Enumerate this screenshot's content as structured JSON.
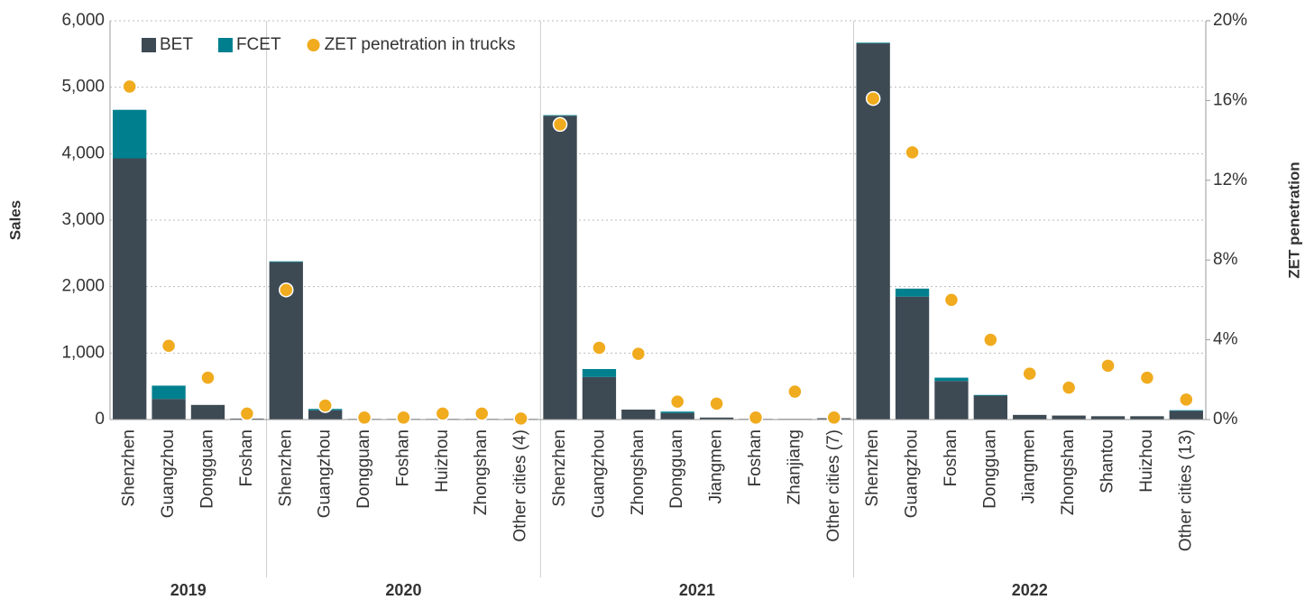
{
  "chart_data": {
    "type": "bar",
    "y_label": "Sales",
    "y2_label": "ZET penetration",
    "categories": [
      "Shenzhen",
      "Guangzhou",
      "Dongguan",
      "Foshan",
      "Shenzhen",
      "Guangzhou",
      "Dongguan",
      "Foshan",
      "Huizhou",
      "Zhongshan",
      "Other cities (4)",
      "Shenzhen",
      "Guangzhou",
      "Zhongshan",
      "Dongguan",
      "Jiangmen",
      "Foshan",
      "Zhanjiang",
      "Other cities (7)",
      "Shenzhen",
      "Guangzhou",
      "Foshan",
      "Dongguan",
      "Jiangmen",
      "Zhongshan",
      "Shantou",
      "Huizhou",
      "Other cities (13)"
    ],
    "category_groups": [
      "2019",
      "2019",
      "2019",
      "2019",
      "2020",
      "2020",
      "2020",
      "2020",
      "2020",
      "2020",
      "2020",
      "2021",
      "2021",
      "2021",
      "2021",
      "2021",
      "2021",
      "2021",
      "2021",
      "2022",
      "2022",
      "2022",
      "2022",
      "2022",
      "2022",
      "2022",
      "2022",
      "2022"
    ],
    "series": [
      {
        "name": "BET",
        "color": "#3d4a54",
        "stacked": true,
        "values": [
          3930,
          310,
          220,
          15,
          2370,
          140,
          10,
          10,
          10,
          10,
          10,
          4570,
          640,
          150,
          100,
          30,
          10,
          10,
          20,
          5660,
          1850,
          580,
          360,
          70,
          60,
          50,
          50,
          130
        ]
      },
      {
        "name": "FCET",
        "color": "#00808f",
        "stacked": true,
        "values": [
          730,
          200,
          0,
          0,
          10,
          20,
          0,
          0,
          0,
          0,
          0,
          10,
          120,
          0,
          20,
          0,
          0,
          0,
          0,
          10,
          120,
          50,
          10,
          0,
          0,
          0,
          0,
          10
        ]
      },
      {
        "name": "ZET penetration in trucks",
        "color": "#f0ab1e",
        "type": "scatter",
        "axis": "y2",
        "values": [
          16.7,
          3.7,
          2.1,
          0.3,
          6.5,
          0.7,
          0.1,
          0.1,
          0.3,
          0.3,
          0.05,
          14.8,
          3.6,
          3.3,
          0.9,
          0.8,
          0.1,
          1.4,
          0.1,
          16.1,
          13.4,
          6.0,
          4.0,
          2.3,
          1.6,
          2.7,
          2.1,
          1.0
        ]
      }
    ],
    "ylim": [
      0,
      6000
    ],
    "yticks": [
      0,
      {
        "value": 1000,
        "label": "1,000"
      },
      {
        "value": 2000,
        "label": "2,000"
      },
      {
        "value": 3000,
        "label": "3,000"
      },
      {
        "value": 4000,
        "label": "4,000"
      },
      {
        "value": 5000,
        "label": "5,000"
      },
      {
        "value": 6000,
        "label": "6,000"
      }
    ],
    "y2lim": [
      0,
      20
    ],
    "y2ticks": [
      {
        "value": 0,
        "label": "0%"
      },
      {
        "value": 4,
        "label": "4%"
      },
      {
        "value": 8,
        "label": "8%"
      },
      {
        "value": 12,
        "label": "12%"
      },
      {
        "value": 16,
        "label": "16%"
      },
      {
        "value": 20,
        "label": "20%"
      }
    ],
    "grid": true,
    "legend": "top-left"
  }
}
